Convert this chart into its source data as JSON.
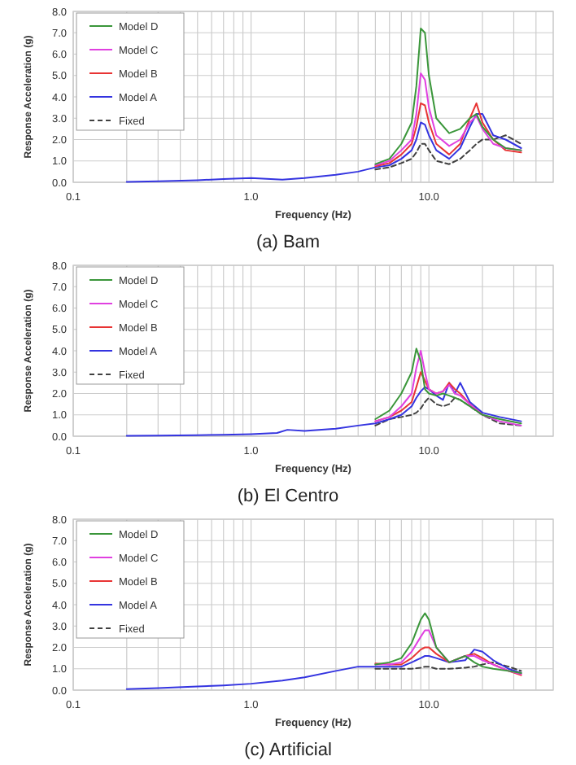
{
  "chart_data": [
    {
      "type": "line",
      "title": "(a) Bam",
      "xlabel": "Frequency (Hz)",
      "ylabel": "Response Acceleration (g)",
      "log": "x",
      "grid": true,
      "legend": "top left",
      "xlim": [
        0.1,
        50
      ],
      "ylim": [
        0,
        8
      ],
      "xticks": [
        {
          "value": 0.1,
          "label": "0.1"
        },
        {
          "value": 0.2,
          "label": null
        },
        {
          "value": 0.3,
          "label": null
        },
        {
          "value": 0.4,
          "label": null
        },
        {
          "value": 0.5,
          "label": null
        },
        {
          "value": 0.6,
          "label": null
        },
        {
          "value": 0.7,
          "label": null
        },
        {
          "value": 0.8,
          "label": null
        },
        {
          "value": 0.9,
          "label": null
        },
        {
          "value": 1,
          "label": "1.0"
        },
        {
          "value": 2,
          "label": null
        },
        {
          "value": 3,
          "label": null
        },
        {
          "value": 4,
          "label": null
        },
        {
          "value": 5,
          "label": null
        },
        {
          "value": 6,
          "label": null
        },
        {
          "value": 7,
          "label": null
        },
        {
          "value": 8,
          "label": null
        },
        {
          "value": 9,
          "label": null
        },
        {
          "value": 10,
          "label": "10.0"
        },
        {
          "value": 20,
          "label": null
        },
        {
          "value": 30,
          "label": null
        },
        {
          "value": 40,
          "label": null
        }
      ],
      "yticks": [
        {
          "value": 0,
          "label": "0.0"
        },
        {
          "value": 1,
          "label": "1.0"
        },
        {
          "value": 2,
          "label": "2.0"
        },
        {
          "value": 3,
          "label": "3.0"
        },
        {
          "value": 4,
          "label": "4.0"
        },
        {
          "value": 5,
          "label": "5.0"
        },
        {
          "value": 6,
          "label": "6.0"
        },
        {
          "value": 7,
          "label": "7.0"
        },
        {
          "value": 8,
          "label": "8.0"
        }
      ],
      "x": [
        0.2,
        0.3,
        0.5,
        0.7,
        1.0,
        1.5,
        2,
        3,
        4,
        5,
        6,
        7,
        8,
        8.5,
        9,
        9.5,
        10,
        11,
        13,
        15,
        17,
        18.5,
        20,
        23,
        27,
        33
      ],
      "series": [
        {
          "name": "Model D",
          "color": "#3a963a",
          "x": [
            5,
            6,
            7,
            8,
            8.5,
            9,
            9.5,
            10,
            11,
            13,
            15,
            17,
            18.5,
            20,
            23,
            27,
            33
          ],
          "values": [
            0.85,
            1.1,
            1.8,
            2.8,
            4.5,
            7.2,
            7.0,
            5.0,
            3.0,
            2.3,
            2.5,
            3.0,
            3.2,
            2.6,
            2.0,
            1.6,
            1.5
          ]
        },
        {
          "name": "Model C",
          "color": "#e040e0",
          "x": [
            5,
            6,
            7,
            8,
            8.5,
            9,
            9.5,
            10,
            11,
            13,
            15,
            17,
            18.5,
            20,
            23,
            27,
            33
          ],
          "values": [
            0.8,
            1.0,
            1.5,
            2.0,
            3.2,
            5.1,
            4.8,
            3.5,
            2.2,
            1.7,
            2.0,
            2.8,
            3.1,
            2.5,
            1.8,
            1.6,
            1.5
          ]
        },
        {
          "name": "Model B",
          "color": "#e83434",
          "x": [
            5,
            6,
            7,
            8,
            8.5,
            9,
            9.5,
            10,
            11,
            13,
            15,
            17,
            18.5,
            20,
            23,
            27,
            33
          ],
          "values": [
            0.75,
            0.9,
            1.3,
            1.8,
            2.6,
            3.7,
            3.6,
            2.8,
            1.8,
            1.3,
            1.8,
            3.0,
            3.7,
            2.8,
            2.0,
            1.5,
            1.4
          ]
        },
        {
          "name": "Model A",
          "color": "#3434e0",
          "values": [
            0.02,
            0.05,
            0.1,
            0.15,
            0.2,
            0.12,
            0.2,
            0.35,
            0.5,
            0.7,
            0.8,
            1.1,
            1.5,
            2.0,
            2.8,
            2.7,
            2.2,
            1.5,
            1.1,
            1.6,
            2.6,
            3.2,
            3.2,
            2.2,
            2.0,
            1.6
          ]
        },
        {
          "name": "Fixed",
          "color": "#404040",
          "line_style": "dashed",
          "x": [
            5,
            6,
            7,
            8,
            8.5,
            9,
            9.5,
            10,
            11,
            13,
            15,
            17,
            18.5,
            20,
            23,
            27,
            33
          ],
          "values": [
            0.6,
            0.7,
            0.9,
            1.1,
            1.4,
            1.8,
            1.8,
            1.5,
            1.0,
            0.85,
            1.1,
            1.5,
            1.8,
            2.0,
            2.0,
            2.2,
            1.8
          ]
        }
      ]
    },
    {
      "type": "line",
      "title": "(b) El Centro",
      "xlabel": "Frequency (Hz)",
      "ylabel": "Response Acceleration (g)",
      "log": "x",
      "grid": true,
      "legend": "top left",
      "xlim": [
        0.1,
        50
      ],
      "ylim": [
        0,
        8
      ],
      "xticks": [
        {
          "value": 0.1,
          "label": "0.1"
        },
        {
          "value": 0.2,
          "label": null
        },
        {
          "value": 0.3,
          "label": null
        },
        {
          "value": 0.4,
          "label": null
        },
        {
          "value": 0.5,
          "label": null
        },
        {
          "value": 0.6,
          "label": null
        },
        {
          "value": 0.7,
          "label": null
        },
        {
          "value": 0.8,
          "label": null
        },
        {
          "value": 0.9,
          "label": null
        },
        {
          "value": 1,
          "label": "1.0"
        },
        {
          "value": 2,
          "label": null
        },
        {
          "value": 3,
          "label": null
        },
        {
          "value": 4,
          "label": null
        },
        {
          "value": 5,
          "label": null
        },
        {
          "value": 6,
          "label": null
        },
        {
          "value": 7,
          "label": null
        },
        {
          "value": 8,
          "label": null
        },
        {
          "value": 9,
          "label": null
        },
        {
          "value": 10,
          "label": "10.0"
        },
        {
          "value": 20,
          "label": null
        },
        {
          "value": 30,
          "label": null
        },
        {
          "value": 40,
          "label": null
        }
      ],
      "yticks": [
        {
          "value": 0,
          "label": "0.0"
        },
        {
          "value": 1,
          "label": "1.0"
        },
        {
          "value": 2,
          "label": "2.0"
        },
        {
          "value": 3,
          "label": "3.0"
        },
        {
          "value": 4,
          "label": "4.0"
        },
        {
          "value": 5,
          "label": "5.0"
        },
        {
          "value": 6,
          "label": "6.0"
        },
        {
          "value": 7,
          "label": "7.0"
        },
        {
          "value": 8,
          "label": "8.0"
        }
      ],
      "x": [
        0.2,
        0.3,
        0.5,
        0.7,
        1.0,
        1.4,
        1.6,
        2,
        3,
        4,
        5,
        6,
        7,
        8,
        8.5,
        9,
        9.5,
        10,
        11,
        12,
        13,
        14,
        15,
        17,
        20,
        25,
        33
      ],
      "series": [
        {
          "name": "Model D",
          "color": "#3a963a",
          "x": [
            5,
            6,
            7,
            8,
            8.5,
            9,
            9.5,
            10,
            11,
            12,
            13,
            14,
            15,
            17,
            20,
            25,
            33
          ],
          "values": [
            0.8,
            1.2,
            2.0,
            3.0,
            4.1,
            3.5,
            2.2,
            2.0,
            1.9,
            2.0,
            1.9,
            1.8,
            1.7,
            1.4,
            1.0,
            0.8,
            0.6
          ]
        },
        {
          "name": "Model C",
          "color": "#e040e0",
          "x": [
            5,
            6,
            7,
            8,
            8.5,
            9,
            9.5,
            10,
            11,
            12,
            13,
            14,
            15,
            17,
            20,
            25,
            33
          ],
          "values": [
            0.7,
            0.9,
            1.4,
            2.0,
            3.2,
            4.0,
            3.0,
            2.2,
            2.0,
            2.1,
            2.4,
            2.0,
            1.9,
            1.5,
            1.0,
            0.7,
            0.5
          ]
        },
        {
          "name": "Model B",
          "color": "#e83434",
          "x": [
            5,
            6,
            7,
            8,
            8.5,
            9,
            9.5,
            10,
            11,
            12,
            13,
            14,
            15,
            17,
            20
          ],
          "values": [
            0.7,
            0.9,
            1.2,
            1.6,
            2.3,
            3.0,
            2.6,
            2.2,
            2.0,
            2.1,
            2.5,
            2.2,
            2.0,
            1.5,
            1.0
          ]
        },
        {
          "name": "Model A",
          "color": "#3434e0",
          "values": [
            0.02,
            0.03,
            0.05,
            0.07,
            0.1,
            0.15,
            0.3,
            0.25,
            0.35,
            0.5,
            0.6,
            0.8,
            1.0,
            1.4,
            1.8,
            2.1,
            2.3,
            2.2,
            1.9,
            1.7,
            2.5,
            2.0,
            2.5,
            1.6,
            1.1,
            0.9,
            0.7
          ]
        },
        {
          "name": "Fixed",
          "color": "#404040",
          "line_style": "dashed",
          "x": [
            5,
            6,
            7,
            8,
            8.5,
            9,
            9.5,
            10,
            11,
            12,
            13,
            14,
            15,
            17,
            20,
            25,
            33
          ],
          "values": [
            0.5,
            0.8,
            0.9,
            1.0,
            1.1,
            1.3,
            1.6,
            1.8,
            1.5,
            1.4,
            1.5,
            1.8,
            1.7,
            1.4,
            1.0,
            0.6,
            0.5
          ]
        }
      ]
    },
    {
      "type": "line",
      "title": "(c) Artificial",
      "xlabel": "Frequency (Hz)",
      "ylabel": "Response Acceleration (g)",
      "log": "x",
      "grid": true,
      "legend": "top left",
      "xlim": [
        0.1,
        50
      ],
      "ylim": [
        0,
        8
      ],
      "xticks": [
        {
          "value": 0.1,
          "label": "0.1"
        },
        {
          "value": 0.2,
          "label": null
        },
        {
          "value": 0.3,
          "label": null
        },
        {
          "value": 0.4,
          "label": null
        },
        {
          "value": 0.5,
          "label": null
        },
        {
          "value": 0.6,
          "label": null
        },
        {
          "value": 0.7,
          "label": null
        },
        {
          "value": 0.8,
          "label": null
        },
        {
          "value": 0.9,
          "label": null
        },
        {
          "value": 1,
          "label": "1.0"
        },
        {
          "value": 2,
          "label": null
        },
        {
          "value": 3,
          "label": null
        },
        {
          "value": 4,
          "label": null
        },
        {
          "value": 5,
          "label": null
        },
        {
          "value": 6,
          "label": null
        },
        {
          "value": 7,
          "label": null
        },
        {
          "value": 8,
          "label": null
        },
        {
          "value": 9,
          "label": null
        },
        {
          "value": 10,
          "label": "10.0"
        },
        {
          "value": 20,
          "label": null
        },
        {
          "value": 30,
          "label": null
        },
        {
          "value": 40,
          "label": null
        }
      ],
      "yticks": [
        {
          "value": 0,
          "label": "0.0"
        },
        {
          "value": 1,
          "label": "1.0"
        },
        {
          "value": 2,
          "label": "2.0"
        },
        {
          "value": 3,
          "label": "3.0"
        },
        {
          "value": 4,
          "label": "4.0"
        },
        {
          "value": 5,
          "label": "5.0"
        },
        {
          "value": 6,
          "label": "6.0"
        },
        {
          "value": 7,
          "label": "7.0"
        },
        {
          "value": 8,
          "label": "8.0"
        }
      ],
      "x": [
        0.2,
        0.3,
        0.5,
        0.7,
        1.0,
        1.5,
        2,
        3,
        4,
        5,
        6,
        7,
        8,
        9,
        9.5,
        10,
        11,
        13,
        16,
        18,
        20,
        23,
        28,
        33
      ],
      "series": [
        {
          "name": "Model D",
          "color": "#3a963a",
          "x": [
            5,
            6,
            7,
            8,
            9,
            9.5,
            10,
            11,
            13,
            16,
            18,
            20,
            23,
            28,
            33
          ],
          "values": [
            1.2,
            1.3,
            1.5,
            2.2,
            3.3,
            3.6,
            3.3,
            2.0,
            1.3,
            1.6,
            1.3,
            1.1,
            1.0,
            0.9,
            0.8
          ]
        },
        {
          "name": "Model C",
          "color": "#e040e0",
          "x": [
            5,
            6,
            7,
            8,
            9,
            9.5,
            10,
            11,
            13,
            16,
            18,
            20,
            23,
            28,
            33
          ],
          "values": [
            1.2,
            1.2,
            1.3,
            1.8,
            2.5,
            2.8,
            2.8,
            2.0,
            1.3,
            1.6,
            1.6,
            1.4,
            1.2,
            0.9,
            0.75
          ]
        },
        {
          "name": "Model B",
          "color": "#e83434",
          "x": [
            5,
            6,
            7,
            8,
            9,
            9.5,
            10,
            11,
            13,
            16,
            18,
            20,
            23,
            28,
            33
          ],
          "values": [
            1.25,
            1.2,
            1.2,
            1.5,
            1.9,
            2.0,
            2.0,
            1.7,
            1.3,
            1.6,
            1.7,
            1.5,
            1.2,
            0.9,
            0.7
          ]
        },
        {
          "name": "Model A",
          "color": "#3434e0",
          "values": [
            0.05,
            0.1,
            0.17,
            0.22,
            0.3,
            0.45,
            0.6,
            0.9,
            1.1,
            1.1,
            1.1,
            1.1,
            1.3,
            1.5,
            1.6,
            1.6,
            1.5,
            1.3,
            1.4,
            1.9,
            1.8,
            1.4,
            1.0,
            0.8
          ]
        },
        {
          "name": "Fixed",
          "color": "#404040",
          "line_style": "dashed",
          "x": [
            5,
            6,
            7,
            8,
            9,
            9.5,
            10,
            11,
            13,
            16,
            18,
            20,
            23,
            28,
            33
          ],
          "values": [
            1.0,
            1.0,
            1.0,
            1.0,
            1.05,
            1.1,
            1.1,
            1.0,
            1.0,
            1.05,
            1.1,
            1.2,
            1.3,
            1.1,
            0.9
          ]
        }
      ]
    }
  ]
}
